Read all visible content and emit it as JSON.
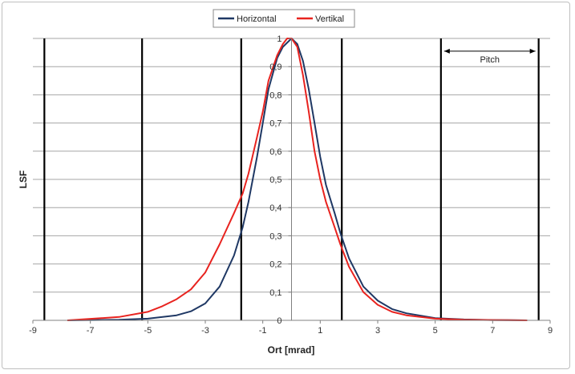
{
  "chart_data": {
    "type": "line",
    "xlabel": "Ort [mrad]",
    "ylabel": "LSF",
    "xlim": [
      -9,
      9
    ],
    "ylim": [
      0,
      1
    ],
    "x_ticks": [
      "-9",
      "-7",
      "-5",
      "-3",
      "-1",
      "1",
      "3",
      "5",
      "7",
      "9"
    ],
    "y_ticks": [
      "0",
      "0,1",
      "0,2",
      "0,3",
      "0,4",
      "0,5",
      "0,6",
      "0,7",
      "0,8",
      "0,9",
      "1"
    ],
    "grid": "horizontal",
    "legend_position": "top",
    "series": [
      {
        "name": "Horizontal",
        "color": "#1f3864",
        "x": [
          -7.8,
          -6,
          -5,
          -4,
          -3.5,
          -3,
          -2.5,
          -2,
          -1.7,
          -1.5,
          -1.2,
          -1,
          -0.8,
          -0.5,
          -0.3,
          0,
          0.2,
          0.4,
          0.6,
          0.8,
          1,
          1.2,
          1.5,
          1.7,
          2,
          2.5,
          3,
          3.5,
          4,
          5,
          6,
          7,
          8.2
        ],
        "y": [
          0,
          0.002,
          0.006,
          0.018,
          0.032,
          0.06,
          0.12,
          0.23,
          0.33,
          0.42,
          0.58,
          0.7,
          0.82,
          0.93,
          0.97,
          1.0,
          0.98,
          0.92,
          0.82,
          0.7,
          0.58,
          0.48,
          0.38,
          0.31,
          0.22,
          0.12,
          0.07,
          0.04,
          0.025,
          0.008,
          0.003,
          0.001,
          0
        ]
      },
      {
        "name": "Vertikal",
        "color": "#e8231f",
        "x": [
          -7.8,
          -6,
          -5,
          -4.5,
          -4,
          -3.5,
          -3,
          -2.5,
          -2,
          -1.7,
          -1.5,
          -1.2,
          -1,
          -0.8,
          -0.5,
          -0.3,
          -0.15,
          0,
          0.2,
          0.4,
          0.6,
          0.8,
          1,
          1.2,
          1.5,
          1.7,
          2,
          2.5,
          3,
          3.5,
          4,
          5,
          6,
          7,
          8.2
        ],
        "y": [
          0,
          0.012,
          0.03,
          0.05,
          0.075,
          0.11,
          0.17,
          0.27,
          0.38,
          0.45,
          0.52,
          0.65,
          0.74,
          0.85,
          0.94,
          0.98,
          1.0,
          1.0,
          0.97,
          0.87,
          0.74,
          0.6,
          0.5,
          0.42,
          0.33,
          0.27,
          0.19,
          0.1,
          0.055,
          0.03,
          0.018,
          0.006,
          0.002,
          0.001,
          0
        ]
      }
    ],
    "pitch_lines_x": [
      -8.6,
      -5.2,
      -1.75,
      1.75,
      5.2,
      8.6
    ],
    "annotation": {
      "text": "Pitch",
      "from_x": 5.2,
      "to_x": 8.6,
      "y": 0.955
    }
  }
}
